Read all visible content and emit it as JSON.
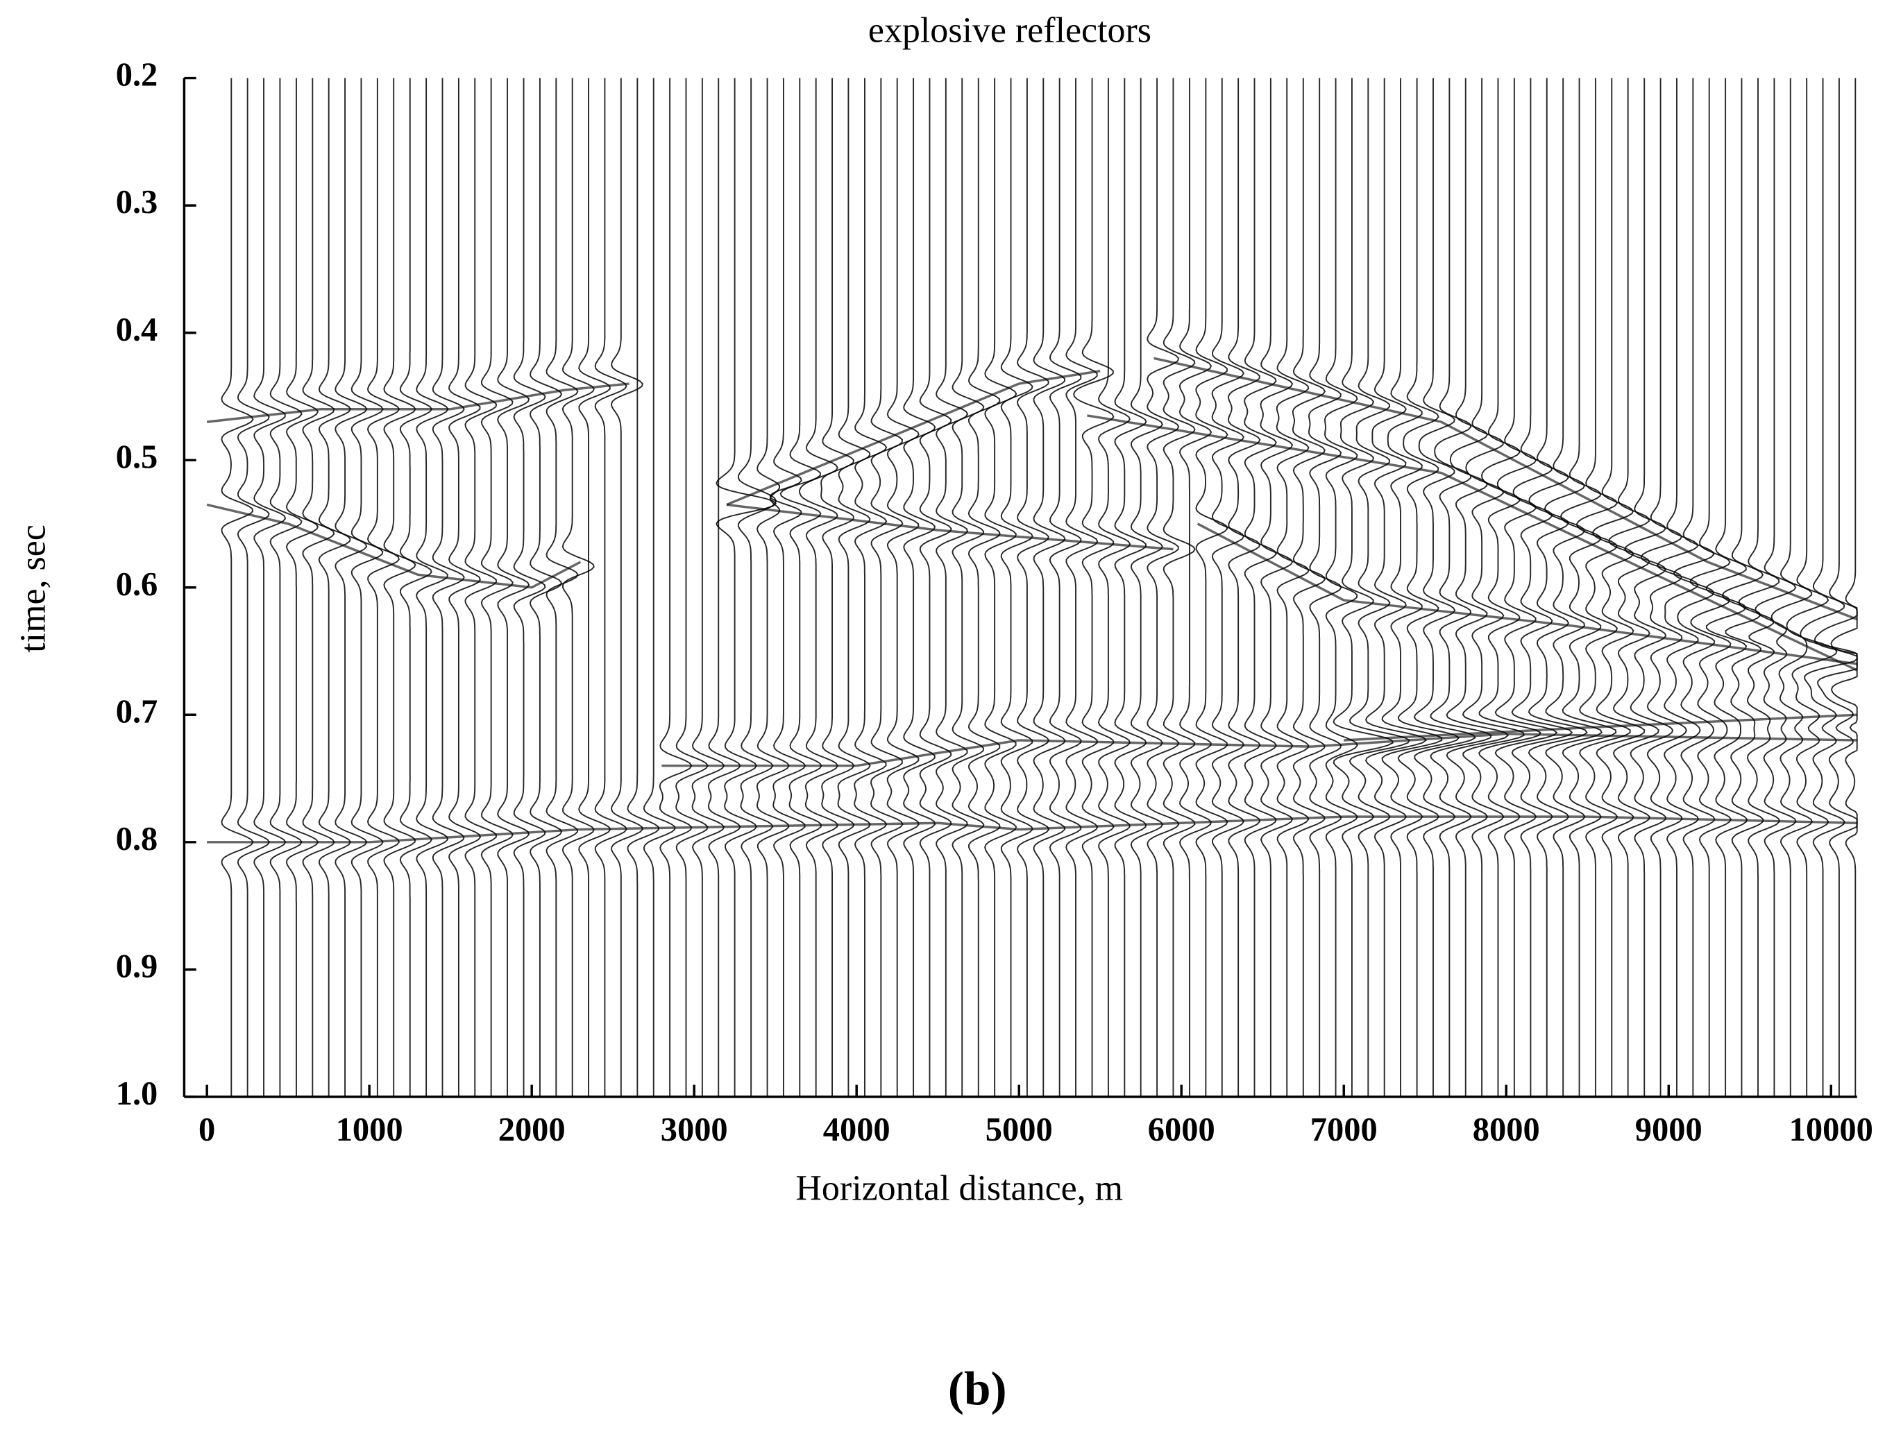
{
  "chart_data": {
    "type": "wiggle",
    "title": "explosive reflectors",
    "xlabel": "Horizontal distance, m",
    "ylabel": "time, sec",
    "caption": "(b)",
    "color": "#000000",
    "xlim": [
      -140,
      10160
    ],
    "ylim": [
      0.2,
      1.0
    ],
    "y_inverted": true,
    "xticks": [
      0,
      1000,
      2000,
      3000,
      4000,
      5000,
      6000,
      7000,
      8000,
      9000,
      10000
    ],
    "yticks": [
      0.2,
      0.3,
      0.4,
      0.5,
      0.6,
      0.7,
      0.8,
      0.9,
      {
        "value": 1,
        "label": "1.0"
      }
    ],
    "trace_x": [
      150,
      250,
      350,
      450,
      550,
      650,
      750,
      850,
      950,
      1050,
      1150,
      1250,
      1350,
      1450,
      1550,
      1650,
      1750,
      1850,
      1950,
      2050,
      2150,
      2250,
      2350,
      2450,
      2550,
      2650,
      2750,
      2850,
      2950,
      3050,
      3150,
      3250,
      3350,
      3450,
      3550,
      3650,
      3750,
      3850,
      3950,
      4050,
      4150,
      4250,
      4350,
      4450,
      4550,
      4650,
      4750,
      4850,
      4950,
      5050,
      5150,
      5250,
      5350,
      5450,
      5550,
      5650,
      5750,
      5850,
      5950,
      6050,
      6150,
      6250,
      6350,
      6450,
      6550,
      6650,
      6750,
      6850,
      6950,
      7050,
      7150,
      7250,
      7350,
      7450,
      7550,
      7650,
      7750,
      7850,
      7950,
      8050,
      8150,
      8250,
      8350,
      8450,
      8550,
      8650,
      8750,
      8850,
      8950,
      9050,
      9150,
      9250,
      9350,
      9450,
      9550,
      9650,
      9750,
      9850,
      9950,
      10050,
      10150
    ],
    "series": [
      {
        "x": [
          0,
          700,
          1500,
          2200,
          2600
        ],
        "values": [
          0.47,
          0.46,
          0.46,
          0.445,
          0.44
        ]
      },
      {
        "x": [
          0,
          500,
          1300,
          2000,
          2300
        ],
        "values": [
          0.535,
          0.55,
          0.59,
          0.6,
          0.58
        ]
      },
      {
        "x": [
          3200,
          4500,
          5950
        ],
        "values": [
          0.535,
          0.555,
          0.57
        ]
      },
      {
        "x": [
          3200,
          5000,
          5500
        ],
        "values": [
          0.535,
          0.44,
          0.43
        ]
      },
      {
        "x": [
          5830,
          7600,
          9240,
          10160
        ],
        "values": [
          0.42,
          0.47,
          0.58,
          0.625
        ]
      },
      {
        "x": [
          5420,
          7600,
          10160
        ],
        "values": [
          0.465,
          0.51,
          0.665
        ]
      },
      {
        "x": [
          6100,
          7000,
          8400,
          10160
        ],
        "values": [
          0.55,
          0.61,
          0.63,
          0.66
        ]
      },
      {
        "x": [
          2800,
          4000,
          5000,
          6800,
          8000,
          10160
        ],
        "values": [
          0.74,
          0.74,
          0.72,
          0.725,
          0.715,
          0.72
        ]
      },
      {
        "x": [
          7000,
          8500,
          10160
        ],
        "values": [
          0.72,
          0.71,
          0.7
        ]
      },
      {
        "x": [
          0,
          1000,
          2300,
          4500,
          5000,
          7000,
          8500,
          10160
        ],
        "values": [
          0.8,
          0.8,
          0.79,
          0.785,
          0.79,
          0.78,
          0.78,
          0.785
        ]
      }
    ]
  }
}
